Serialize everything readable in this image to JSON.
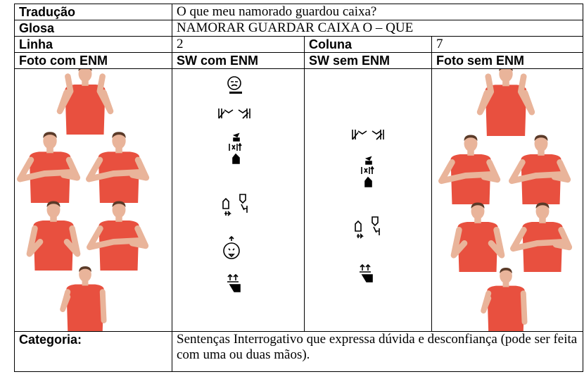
{
  "table": {
    "rows": [
      [
        "Tradução",
        "O que meu namorado guardou caixa?"
      ],
      [
        "Glosa",
        "NAMORAR GUARDAR CAIXA O – QUE"
      ],
      [
        "Linha",
        "2",
        "Coluna",
        "7"
      ],
      [
        "Foto com ENM",
        "SW com ENM",
        "SW sem ENM",
        "Foto sem ENM"
      ],
      [
        "Categoria:",
        "Sentenças Interrogativo que expressa dúvida e desconfiança (pode ser feita com uma ou duas mãos)."
      ]
    ]
  }
}
